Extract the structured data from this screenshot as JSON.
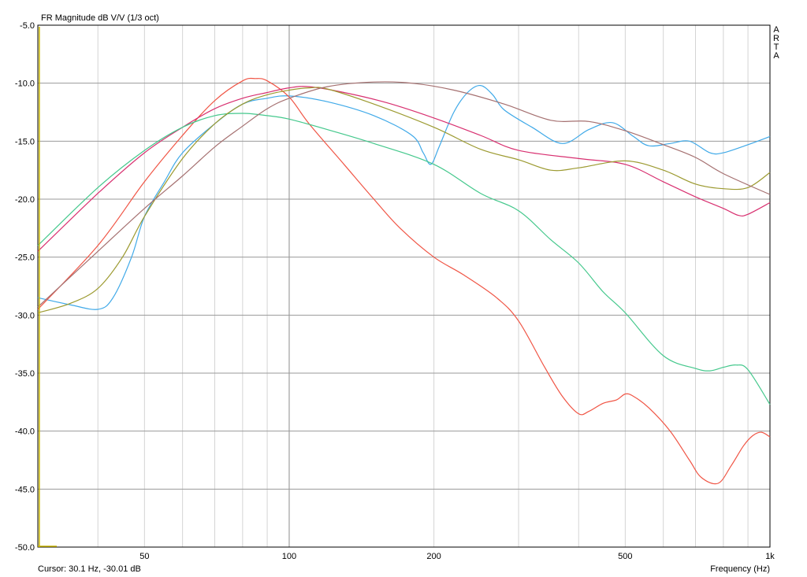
{
  "chart_data": {
    "type": "line",
    "title": "FR Magnitude dB V/V (1/3 oct)",
    "xlabel": "Frequency (Hz)",
    "ylabel": "",
    "watermark": "ARTA",
    "cursor_readout": "Cursor: 30.1 Hz, -30.01 dB",
    "xscale": "log",
    "xlim": [
      30,
      1000
    ],
    "ylim": [
      -50,
      -5
    ],
    "grid": true,
    "x_tick_labels": [
      {
        "value": 50,
        "label": "50"
      },
      {
        "value": 100,
        "label": "100"
      },
      {
        "value": 200,
        "label": "200"
      },
      {
        "value": 500,
        "label": "500"
      },
      {
        "value": 1000,
        "label": "1k"
      }
    ],
    "y_ticks": [
      -5,
      -10,
      -15,
      -20,
      -25,
      -30,
      -35,
      -40,
      -45,
      -50
    ],
    "y_tick_labels": [
      "-5.0",
      "-10.0",
      "-15.0",
      "-20.0",
      "-25.0",
      "-30.0",
      "-35.0",
      "-40.0",
      "-45.0",
      "-50.0"
    ],
    "cursor": {
      "x": 30.1,
      "y": -30.01,
      "color": "#c8b400"
    },
    "series": [
      {
        "color": "#3fa9e8",
        "points": [
          [
            30,
            -28.5
          ],
          [
            35,
            -29.1
          ],
          [
            40,
            -29.5
          ],
          [
            43,
            -28.5
          ],
          [
            47,
            -25
          ],
          [
            50,
            -21.5
          ],
          [
            55,
            -18.5
          ],
          [
            60,
            -16
          ],
          [
            70,
            -13.5
          ],
          [
            80,
            -11.8
          ],
          [
            90,
            -11.3
          ],
          [
            100,
            -11.1
          ],
          [
            120,
            -11.6
          ],
          [
            150,
            -12.8
          ],
          [
            180,
            -14.5
          ],
          [
            190,
            -16
          ],
          [
            197,
            -17
          ],
          [
            205,
            -15.5
          ],
          [
            220,
            -12.5
          ],
          [
            235,
            -10.8
          ],
          [
            250,
            -10.2
          ],
          [
            265,
            -11
          ],
          [
            280,
            -12.3
          ],
          [
            320,
            -13.8
          ],
          [
            370,
            -15.2
          ],
          [
            420,
            -14
          ],
          [
            470,
            -13.4
          ],
          [
            520,
            -14.6
          ],
          [
            560,
            -15.4
          ],
          [
            620,
            -15.2
          ],
          [
            680,
            -15
          ],
          [
            750,
            -16
          ],
          [
            800,
            -16
          ],
          [
            900,
            -15.3
          ],
          [
            1000,
            -14.6
          ]
        ]
      },
      {
        "color": "#f05545",
        "points": [
          [
            30,
            -29.5
          ],
          [
            40,
            -24
          ],
          [
            50,
            -18.5
          ],
          [
            60,
            -14.5
          ],
          [
            70,
            -11.5
          ],
          [
            80,
            -9.8
          ],
          [
            85,
            -9.6
          ],
          [
            90,
            -9.8
          ],
          [
            100,
            -11.2
          ],
          [
            110,
            -13.5
          ],
          [
            130,
            -17
          ],
          [
            150,
            -20
          ],
          [
            170,
            -22.5
          ],
          [
            200,
            -25
          ],
          [
            230,
            -26.5
          ],
          [
            270,
            -28.5
          ],
          [
            300,
            -30.5
          ],
          [
            340,
            -34.5
          ],
          [
            370,
            -37
          ],
          [
            400,
            -38.5
          ],
          [
            420,
            -38.3
          ],
          [
            450,
            -37.6
          ],
          [
            480,
            -37.3
          ],
          [
            500,
            -36.8
          ],
          [
            520,
            -37
          ],
          [
            560,
            -38
          ],
          [
            620,
            -40
          ],
          [
            680,
            -42.5
          ],
          [
            720,
            -44
          ],
          [
            780,
            -44.5
          ],
          [
            830,
            -43
          ],
          [
            880,
            -41.3
          ],
          [
            920,
            -40.4
          ],
          [
            960,
            -40.1
          ],
          [
            1000,
            -40.5
          ]
        ]
      },
      {
        "color": "#d83070",
        "points": [
          [
            30,
            -24.5
          ],
          [
            40,
            -19.5
          ],
          [
            50,
            -16
          ],
          [
            60,
            -13.8
          ],
          [
            70,
            -12.2
          ],
          [
            80,
            -11.3
          ],
          [
            90,
            -10.8
          ],
          [
            100,
            -10.4
          ],
          [
            110,
            -10.3
          ],
          [
            130,
            -10.8
          ],
          [
            160,
            -11.7
          ],
          [
            200,
            -13
          ],
          [
            250,
            -14.5
          ],
          [
            300,
            -15.8
          ],
          [
            400,
            -16.5
          ],
          [
            500,
            -17
          ],
          [
            600,
            -18.5
          ],
          [
            700,
            -19.8
          ],
          [
            800,
            -20.8
          ],
          [
            860,
            -21.4
          ],
          [
            900,
            -21.3
          ],
          [
            1000,
            -20.3
          ]
        ]
      },
      {
        "color": "#44c88c",
        "points": [
          [
            30,
            -24
          ],
          [
            40,
            -19
          ],
          [
            50,
            -15.8
          ],
          [
            60,
            -13.8
          ],
          [
            70,
            -12.8
          ],
          [
            80,
            -12.6
          ],
          [
            90,
            -12.8
          ],
          [
            100,
            -13.1
          ],
          [
            120,
            -14
          ],
          [
            150,
            -15.2
          ],
          [
            200,
            -17
          ],
          [
            250,
            -19.5
          ],
          [
            300,
            -21
          ],
          [
            350,
            -23.5
          ],
          [
            400,
            -25.5
          ],
          [
            450,
            -28
          ],
          [
            500,
            -29.8
          ],
          [
            600,
            -33.5
          ],
          [
            700,
            -34.6
          ],
          [
            750,
            -34.8
          ],
          [
            800,
            -34.5
          ],
          [
            850,
            -34.3
          ],
          [
            900,
            -34.7
          ],
          [
            1000,
            -37.7
          ]
        ]
      },
      {
        "color": "#9c9a30",
        "points": [
          [
            30,
            -29.8
          ],
          [
            35,
            -29
          ],
          [
            40,
            -27.7
          ],
          [
            45,
            -25
          ],
          [
            50,
            -21.5
          ],
          [
            60,
            -16.5
          ],
          [
            70,
            -13.5
          ],
          [
            80,
            -11.8
          ],
          [
            90,
            -11
          ],
          [
            100,
            -10.6
          ],
          [
            110,
            -10.4
          ],
          [
            120,
            -10.5
          ],
          [
            150,
            -11.8
          ],
          [
            200,
            -13.8
          ],
          [
            250,
            -15.7
          ],
          [
            300,
            -16.6
          ],
          [
            350,
            -17.5
          ],
          [
            400,
            -17.3
          ],
          [
            500,
            -16.7
          ],
          [
            600,
            -17.5
          ],
          [
            700,
            -18.7
          ],
          [
            800,
            -19.1
          ],
          [
            900,
            -19
          ],
          [
            1000,
            -17.7
          ]
        ]
      },
      {
        "color": "#a57070",
        "points": [
          [
            30,
            -29.3
          ],
          [
            40,
            -24.5
          ],
          [
            50,
            -20.8
          ],
          [
            60,
            -18
          ],
          [
            70,
            -15.5
          ],
          [
            80,
            -13.7
          ],
          [
            90,
            -12.2
          ],
          [
            100,
            -11.3
          ],
          [
            120,
            -10.3
          ],
          [
            150,
            -9.9
          ],
          [
            180,
            -10
          ],
          [
            220,
            -10.6
          ],
          [
            280,
            -11.8
          ],
          [
            350,
            -13.2
          ],
          [
            420,
            -13.3
          ],
          [
            500,
            -14.1
          ],
          [
            600,
            -15.3
          ],
          [
            700,
            -16.4
          ],
          [
            800,
            -17.8
          ],
          [
            1000,
            -19.6
          ]
        ]
      }
    ]
  }
}
